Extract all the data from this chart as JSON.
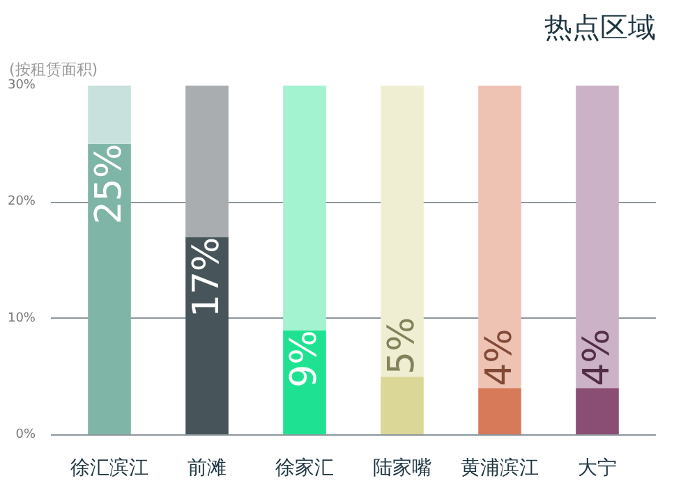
{
  "chart_data": {
    "type": "bar",
    "title": "热点区域",
    "subtitle": "(按租赁面积)",
    "stacked": true,
    "categories": [
      "徐汇滨江",
      "前滩",
      "徐家汇",
      "陆家嘴",
      "黄浦滨江",
      "大宁"
    ],
    "series": [
      {
        "colors": [
          "#7fb5a7",
          "#47555a",
          "#1ee292",
          "#dbd897",
          "#d77a5a",
          "#8a4d74"
        ],
        "values": [
          25,
          17,
          9,
          5,
          4,
          4
        ],
        "value_labels": [
          "25%",
          "17%",
          "9%",
          "5%",
          "4%",
          "4%"
        ]
      },
      {
        "colors": [
          "#c8e1dc",
          "#a9adb0",
          "#a3f2d0",
          "#efeed2",
          "#eec3b4",
          "#cbb2c6"
        ],
        "values": [
          5,
          13,
          21,
          25,
          26,
          26
        ]
      }
    ],
    "ylim": [
      0,
      30
    ],
    "yticks": [
      {
        "value": 0,
        "label": "0%"
      },
      {
        "value": 10,
        "label": "10%"
      },
      {
        "value": 20,
        "label": "20%"
      },
      {
        "value": 30,
        "label": "30%"
      }
    ],
    "grid": "y"
  }
}
